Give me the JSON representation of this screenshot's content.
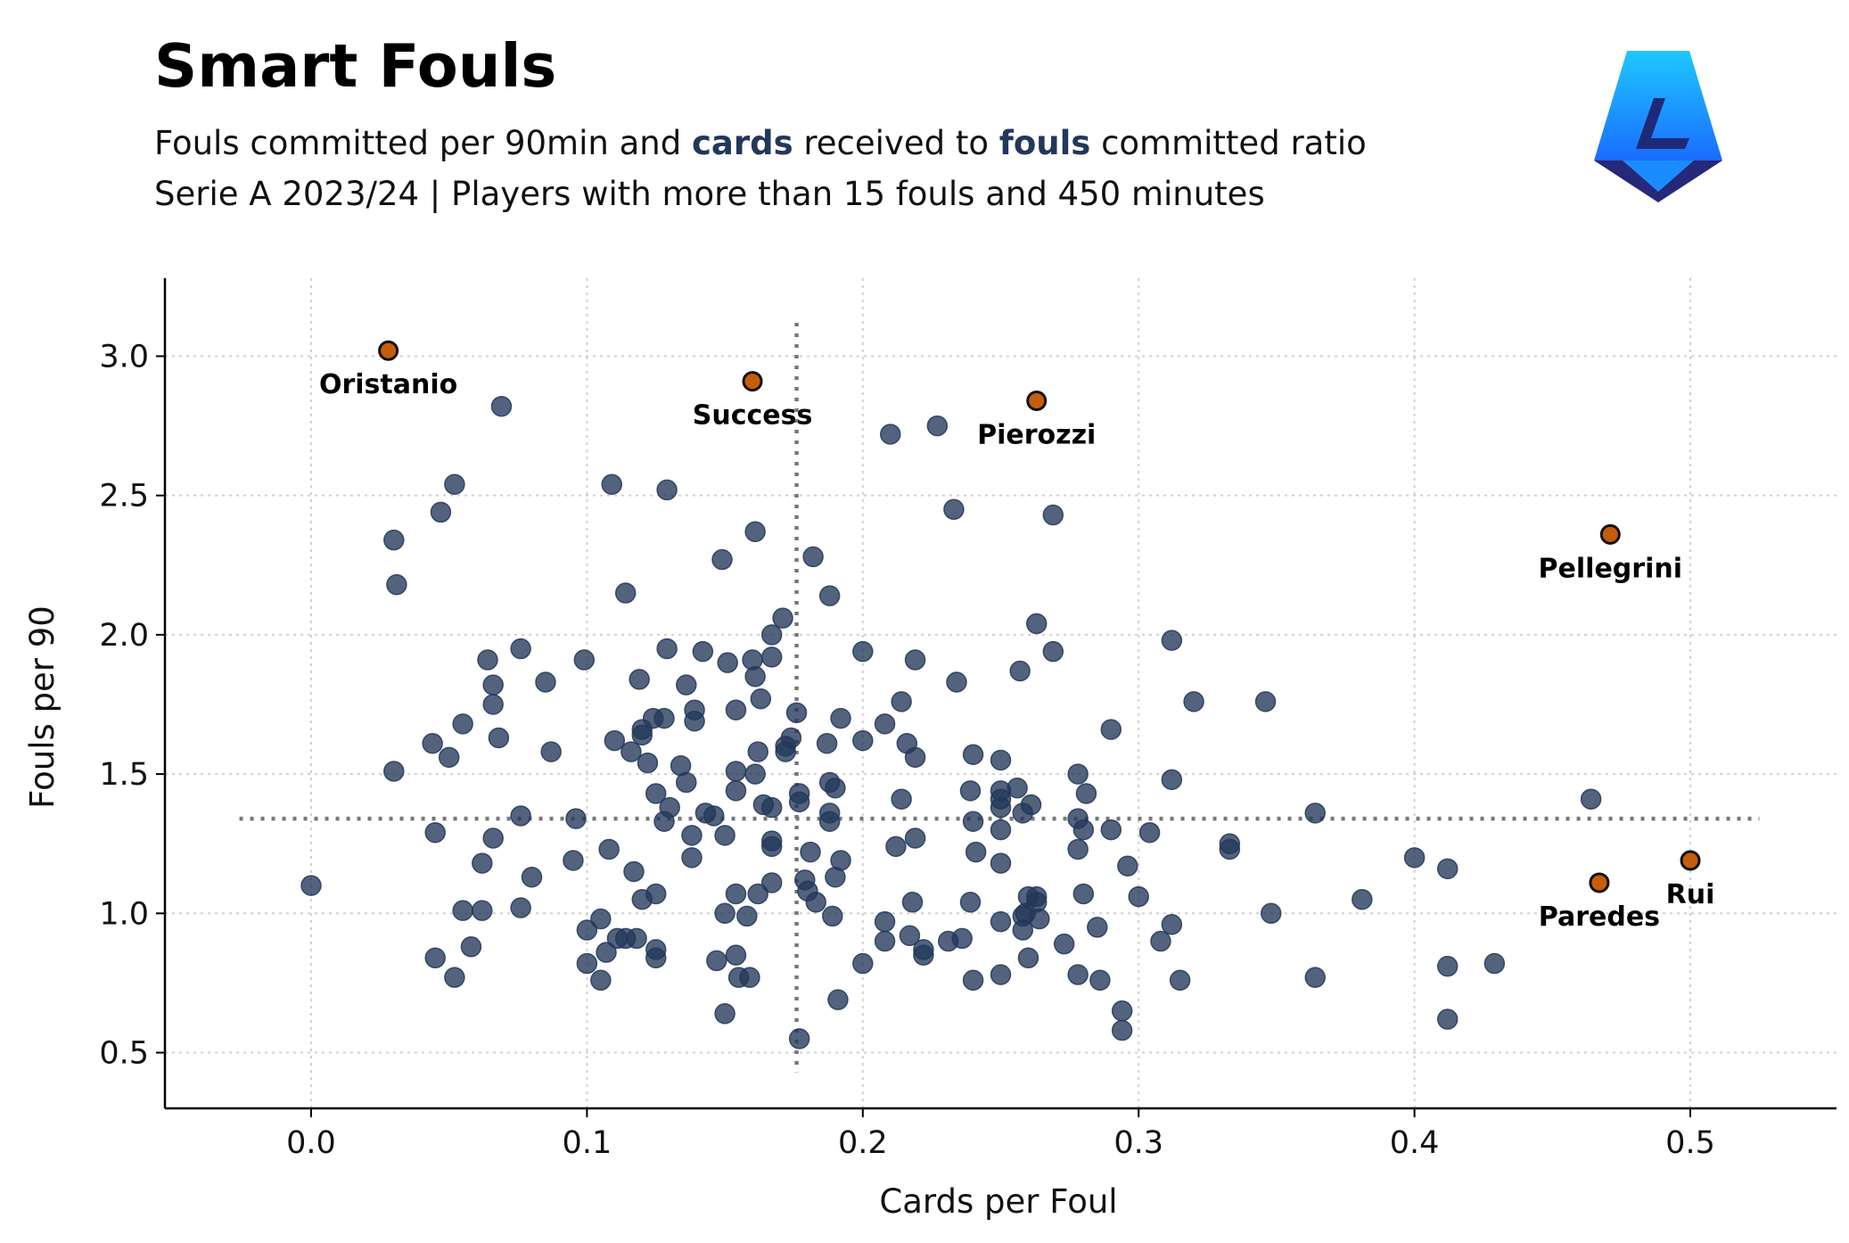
{
  "header": {
    "title": "Smart Fouls",
    "subtitle_part1": "Fouls committed per 90min and ",
    "subtitle_hl1": "cards",
    "subtitle_part2": " received to ",
    "subtitle_hl2": "fouls",
    "subtitle_part3": " committed ratio",
    "subtitle_line2": "Serie A 2023/24 | Players with more than 15 fouls and 450 minutes"
  },
  "logo": {
    "icon": "serie-a-logo-icon",
    "colors": [
      "#1ec8ff",
      "#1a73ff",
      "#2a2a6a"
    ]
  },
  "chart_data": {
    "type": "scatter",
    "xlabel": "Cards per Foul",
    "ylabel": "Fouls per 90",
    "xlim": [
      -0.053,
      0.553
    ],
    "ylim": [
      0.3,
      3.28
    ],
    "xticks": [
      "0.0",
      "0.1",
      "0.2",
      "0.3",
      "0.4",
      "0.5"
    ],
    "yticks": [
      "0.5",
      "1.0",
      "1.5",
      "2.0",
      "2.5",
      "3.0"
    ],
    "grid": true,
    "mean_x": 0.176,
    "mean_y": 1.34,
    "colors": {
      "points": "#22375a",
      "highlight": "#c65d0b",
      "mean_line": "#777777"
    },
    "highlighted": [
      {
        "label": "Oristanio",
        "x": 0.028,
        "y": 3.02
      },
      {
        "label": "Success",
        "x": 0.16,
        "y": 2.91
      },
      {
        "label": "Pierozzi",
        "x": 0.263,
        "y": 2.84
      },
      {
        "label": "Pellegrini",
        "x": 0.471,
        "y": 2.36
      },
      {
        "label": "Rui",
        "x": 0.5,
        "y": 1.19
      },
      {
        "label": "Paredes",
        "x": 0.467,
        "y": 1.11
      }
    ],
    "points": [
      [
        0.0,
        1.1
      ],
      [
        0.03,
        2.34
      ],
      [
        0.031,
        2.18
      ],
      [
        0.03,
        1.51
      ],
      [
        0.044,
        1.61
      ],
      [
        0.045,
        1.29
      ],
      [
        0.045,
        0.84
      ],
      [
        0.047,
        2.44
      ],
      [
        0.05,
        1.56
      ],
      [
        0.052,
        2.54
      ],
      [
        0.052,
        0.77
      ],
      [
        0.055,
        1.68
      ],
      [
        0.055,
        1.01
      ],
      [
        0.058,
        0.88
      ],
      [
        0.062,
        1.18
      ],
      [
        0.062,
        1.01
      ],
      [
        0.064,
        1.91
      ],
      [
        0.066,
        1.82
      ],
      [
        0.066,
        1.75
      ],
      [
        0.066,
        1.27
      ],
      [
        0.068,
        1.63
      ],
      [
        0.069,
        2.82
      ],
      [
        0.076,
        1.95
      ],
      [
        0.076,
        1.35
      ],
      [
        0.076,
        1.02
      ],
      [
        0.08,
        1.13
      ],
      [
        0.085,
        1.83
      ],
      [
        0.087,
        1.58
      ],
      [
        0.095,
        1.19
      ],
      [
        0.096,
        1.34
      ],
      [
        0.099,
        1.91
      ],
      [
        0.1,
        0.94
      ],
      [
        0.1,
        0.82
      ],
      [
        0.105,
        0.98
      ],
      [
        0.105,
        0.76
      ],
      [
        0.107,
        0.86
      ],
      [
        0.108,
        1.23
      ],
      [
        0.109,
        2.54
      ],
      [
        0.11,
        1.62
      ],
      [
        0.111,
        0.91
      ],
      [
        0.114,
        2.15
      ],
      [
        0.114,
        0.91
      ],
      [
        0.116,
        1.58
      ],
      [
        0.117,
        1.15
      ],
      [
        0.118,
        0.91
      ],
      [
        0.119,
        1.84
      ],
      [
        0.12,
        1.66
      ],
      [
        0.12,
        1.64
      ],
      [
        0.12,
        1.05
      ],
      [
        0.122,
        1.54
      ],
      [
        0.124,
        1.7
      ],
      [
        0.125,
        1.43
      ],
      [
        0.125,
        1.07
      ],
      [
        0.125,
        0.87
      ],
      [
        0.125,
        0.84
      ],
      [
        0.128,
        1.7
      ],
      [
        0.128,
        1.33
      ],
      [
        0.129,
        2.52
      ],
      [
        0.129,
        1.95
      ],
      [
        0.13,
        1.38
      ],
      [
        0.134,
        1.53
      ],
      [
        0.136,
        1.82
      ],
      [
        0.136,
        1.47
      ],
      [
        0.138,
        1.28
      ],
      [
        0.138,
        1.2
      ],
      [
        0.139,
        1.73
      ],
      [
        0.139,
        1.69
      ],
      [
        0.142,
        1.94
      ],
      [
        0.143,
        1.36
      ],
      [
        0.146,
        1.35
      ],
      [
        0.147,
        0.83
      ],
      [
        0.149,
        2.27
      ],
      [
        0.15,
        1.28
      ],
      [
        0.15,
        1.0
      ],
      [
        0.15,
        0.64
      ],
      [
        0.151,
        1.9
      ],
      [
        0.154,
        1.73
      ],
      [
        0.154,
        1.51
      ],
      [
        0.154,
        1.44
      ],
      [
        0.154,
        1.07
      ],
      [
        0.154,
        0.85
      ],
      [
        0.155,
        0.77
      ],
      [
        0.158,
        0.99
      ],
      [
        0.159,
        0.77
      ],
      [
        0.16,
        1.91
      ],
      [
        0.161,
        1.85
      ],
      [
        0.161,
        1.5
      ],
      [
        0.161,
        2.37
      ],
      [
        0.162,
        1.58
      ],
      [
        0.162,
        1.07
      ],
      [
        0.163,
        1.77
      ],
      [
        0.164,
        1.39
      ],
      [
        0.167,
        2.0
      ],
      [
        0.167,
        1.92
      ],
      [
        0.167,
        1.38
      ],
      [
        0.167,
        1.26
      ],
      [
        0.167,
        1.24
      ],
      [
        0.167,
        1.11
      ],
      [
        0.171,
        2.06
      ],
      [
        0.172,
        1.6
      ],
      [
        0.172,
        1.58
      ],
      [
        0.174,
        1.63
      ],
      [
        0.176,
        1.72
      ],
      [
        0.177,
        1.43
      ],
      [
        0.177,
        1.4
      ],
      [
        0.177,
        0.55
      ],
      [
        0.179,
        1.12
      ],
      [
        0.18,
        1.08
      ],
      [
        0.181,
        1.22
      ],
      [
        0.182,
        2.28
      ],
      [
        0.183,
        1.04
      ],
      [
        0.187,
        1.61
      ],
      [
        0.188,
        2.14
      ],
      [
        0.188,
        1.47
      ],
      [
        0.188,
        1.36
      ],
      [
        0.188,
        1.33
      ],
      [
        0.189,
        0.99
      ],
      [
        0.19,
        1.45
      ],
      [
        0.19,
        1.13
      ],
      [
        0.191,
        0.69
      ],
      [
        0.192,
        1.7
      ],
      [
        0.192,
        1.19
      ],
      [
        0.2,
        1.94
      ],
      [
        0.2,
        1.62
      ],
      [
        0.2,
        0.82
      ],
      [
        0.208,
        1.68
      ],
      [
        0.208,
        0.97
      ],
      [
        0.208,
        0.9
      ],
      [
        0.21,
        2.72
      ],
      [
        0.212,
        1.24
      ],
      [
        0.214,
        1.41
      ],
      [
        0.214,
        1.76
      ],
      [
        0.216,
        1.61
      ],
      [
        0.217,
        0.92
      ],
      [
        0.218,
        1.04
      ],
      [
        0.219,
        1.91
      ],
      [
        0.219,
        1.56
      ],
      [
        0.219,
        1.27
      ],
      [
        0.222,
        0.85
      ],
      [
        0.222,
        0.87
      ],
      [
        0.227,
        2.75
      ],
      [
        0.231,
        0.9
      ],
      [
        0.233,
        2.45
      ],
      [
        0.234,
        1.83
      ],
      [
        0.236,
        0.91
      ],
      [
        0.239,
        1.44
      ],
      [
        0.239,
        1.04
      ],
      [
        0.24,
        1.57
      ],
      [
        0.24,
        1.33
      ],
      [
        0.24,
        0.76
      ],
      [
        0.241,
        1.22
      ],
      [
        0.25,
        1.55
      ],
      [
        0.25,
        1.44
      ],
      [
        0.25,
        1.41
      ],
      [
        0.25,
        1.38
      ],
      [
        0.25,
        1.3
      ],
      [
        0.25,
        1.18
      ],
      [
        0.25,
        0.97
      ],
      [
        0.25,
        0.78
      ],
      [
        0.256,
        1.45
      ],
      [
        0.257,
        1.87
      ],
      [
        0.258,
        1.36
      ],
      [
        0.258,
        0.99
      ],
      [
        0.258,
        0.94
      ],
      [
        0.259,
        1.0
      ],
      [
        0.26,
        1.06
      ],
      [
        0.26,
        0.84
      ],
      [
        0.261,
        1.39
      ],
      [
        0.263,
        2.04
      ],
      [
        0.263,
        1.06
      ],
      [
        0.263,
        1.04
      ],
      [
        0.264,
        0.98
      ],
      [
        0.269,
        2.43
      ],
      [
        0.269,
        1.94
      ],
      [
        0.273,
        0.89
      ],
      [
        0.278,
        1.5
      ],
      [
        0.278,
        1.34
      ],
      [
        0.278,
        1.23
      ],
      [
        0.278,
        0.78
      ],
      [
        0.28,
        1.3
      ],
      [
        0.28,
        1.07
      ],
      [
        0.281,
        1.43
      ],
      [
        0.285,
        0.95
      ],
      [
        0.286,
        0.76
      ],
      [
        0.29,
        1.66
      ],
      [
        0.29,
        1.3
      ],
      [
        0.294,
        0.65
      ],
      [
        0.294,
        0.58
      ],
      [
        0.296,
        1.17
      ],
      [
        0.3,
        1.06
      ],
      [
        0.304,
        1.29
      ],
      [
        0.308,
        0.9
      ],
      [
        0.312,
        1.98
      ],
      [
        0.312,
        1.48
      ],
      [
        0.312,
        0.96
      ],
      [
        0.315,
        0.76
      ],
      [
        0.32,
        1.76
      ],
      [
        0.333,
        1.25
      ],
      [
        0.333,
        1.23
      ],
      [
        0.346,
        1.76
      ],
      [
        0.348,
        1.0
      ],
      [
        0.364,
        1.36
      ],
      [
        0.364,
        0.77
      ],
      [
        0.381,
        1.05
      ],
      [
        0.4,
        1.2
      ],
      [
        0.412,
        1.16
      ],
      [
        0.412,
        0.81
      ],
      [
        0.412,
        0.62
      ],
      [
        0.429,
        0.82
      ],
      [
        0.464,
        1.41
      ]
    ]
  }
}
